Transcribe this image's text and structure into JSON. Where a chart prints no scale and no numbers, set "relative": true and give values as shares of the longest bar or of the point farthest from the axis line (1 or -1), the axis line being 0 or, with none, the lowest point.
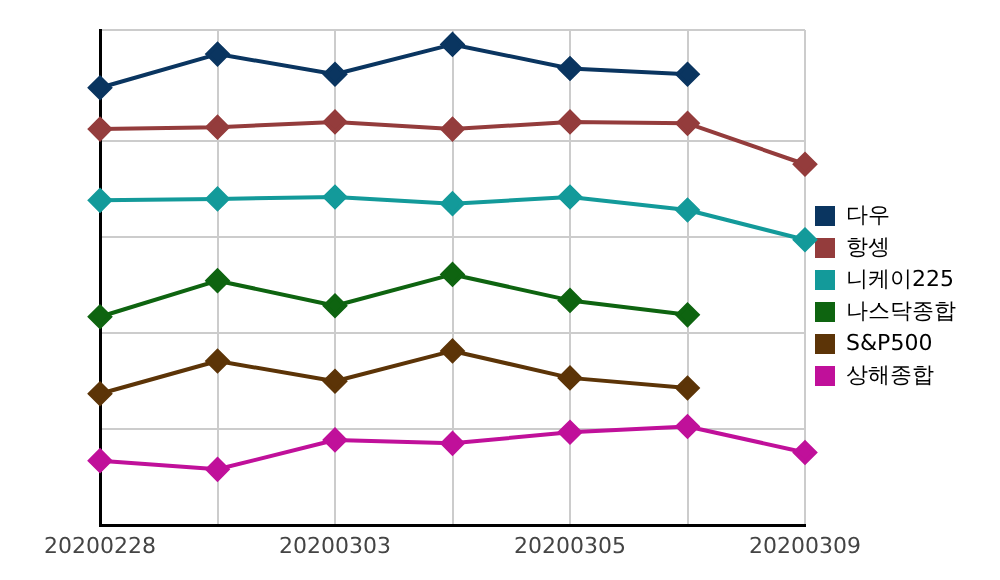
{
  "chart_data": {
    "type": "line",
    "relative": true,
    "categories": [
      "20200228",
      null,
      "20200303",
      null,
      "20200305",
      null,
      "20200309"
    ],
    "series": [
      {
        "name": "다우",
        "color": "#0a3560",
        "values": [
          0.91,
          0.98,
          0.938,
          1,
          0.95,
          0.938,
          null
        ]
      },
      {
        "name": "항셍",
        "color": "#943c3c",
        "values": [
          0.824,
          0.828,
          0.839,
          0.824,
          0.839,
          0.836,
          0.751
        ]
      },
      {
        "name": "니케이225",
        "color": "#139a9a",
        "values": [
          0.676,
          0.679,
          0.683,
          0.669,
          0.683,
          0.656,
          0.594
        ]
      },
      {
        "name": "나스닥종합",
        "color": "#0e6410",
        "values": [
          0.434,
          0.509,
          0.457,
          0.522,
          0.468,
          0.438,
          null
        ]
      },
      {
        "name": "S&P500",
        "color": "#5c3407",
        "values": [
          0.274,
          0.342,
          0.3,
          0.363,
          0.307,
          0.286,
          null
        ]
      },
      {
        "name": "상해종합",
        "color": "#c0109a",
        "values": [
          0.135,
          0.117,
          0.178,
          0.171,
          0.194,
          0.206,
          0.152
        ]
      }
    ],
    "grid": true,
    "legend": "right",
    "marker": "diamond",
    "line_style": "solid"
  }
}
